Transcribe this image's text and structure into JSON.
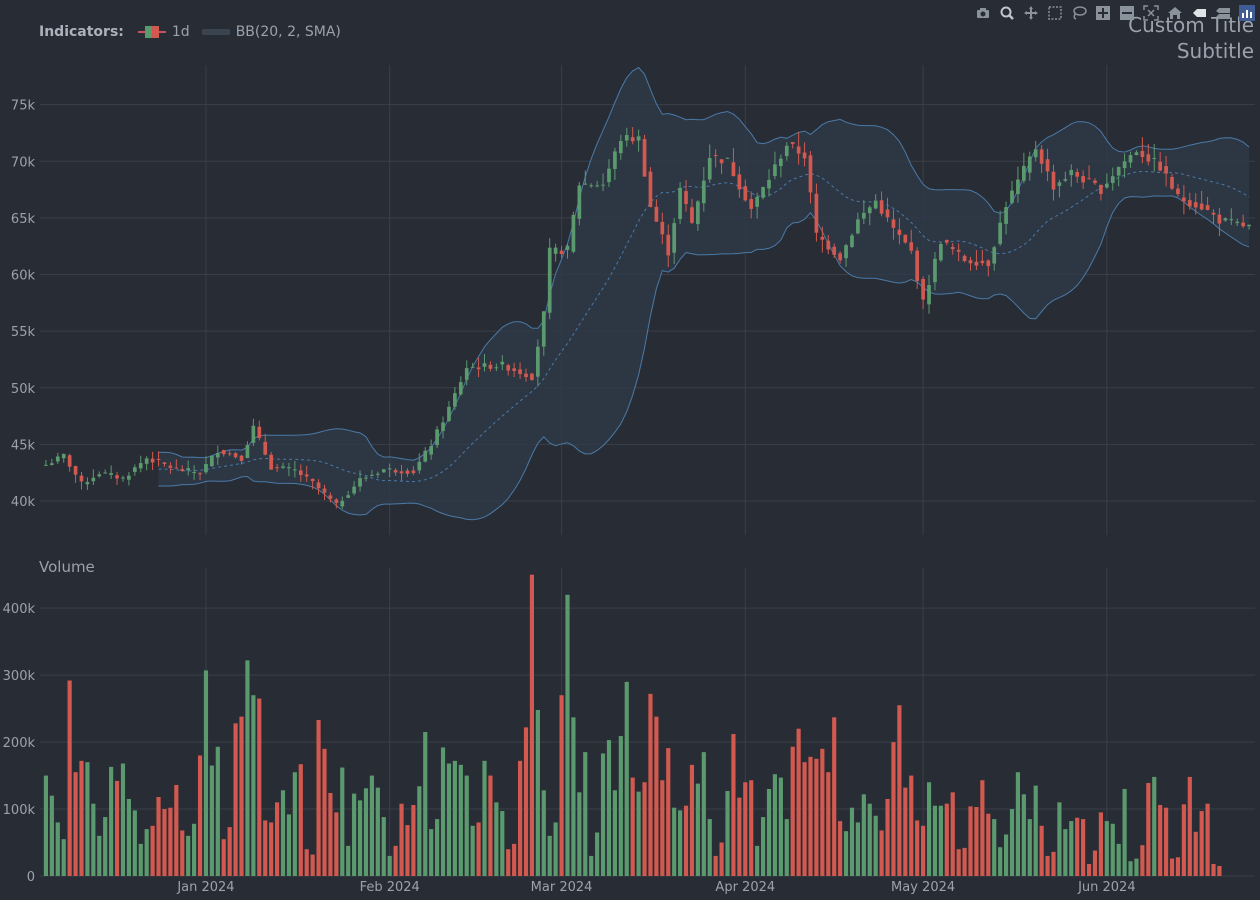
{
  "legend": {
    "label": "Indicators:",
    "items": [
      {
        "name": "1d",
        "kind": "candlestick"
      },
      {
        "name": "BB(20, 2, SMA)",
        "kind": "band"
      }
    ]
  },
  "titles": {
    "title": "Custom Title",
    "subtitle": "Subtitle"
  },
  "volume_title": "Volume",
  "modebar": [
    "camera-icon",
    "zoom-icon",
    "pan-icon",
    "box-select-icon",
    "lasso-icon",
    "zoom-in-icon",
    "zoom-out-icon",
    "autoscale-icon",
    "home-icon",
    "spike-lines-icon",
    "hover-compare-icon",
    "plotly-logo-icon"
  ],
  "colors": {
    "up": "#5b9a6e",
    "down": "#d2594f",
    "band_line": "#4a7aa8",
    "band_fill": "#2f3a48",
    "grid": "#3a3f48",
    "background": "#282c34"
  },
  "chart_data": [
    {
      "type": "candlestick",
      "series_name": "1d",
      "x_range": [
        "2023-12-04",
        "2024-06-26"
      ],
      "y_range": [
        37000,
        78500
      ],
      "y_ticks": [
        {
          "value": 40000,
          "label": "40k"
        },
        {
          "value": 45000,
          "label": "45k"
        },
        {
          "value": 50000,
          "label": "50k"
        },
        {
          "value": 55000,
          "label": "55k"
        },
        {
          "value": 60000,
          "label": "60k"
        },
        {
          "value": 65000,
          "label": "65k"
        },
        {
          "value": 70000,
          "label": "70k"
        },
        {
          "value": 75000,
          "label": "75k"
        }
      ],
      "x_ticks": [
        {
          "date": "2024-01-01",
          "label": "Jan 2024"
        },
        {
          "date": "2024-02-01",
          "label": "Feb 2024"
        },
        {
          "date": "2024-03-01",
          "label": "Mar 2024"
        },
        {
          "date": "2024-04-01",
          "label": "Apr 2024"
        },
        {
          "date": "2024-05-01",
          "label": "May 2024"
        },
        {
          "date": "2024-06-01",
          "label": "Jun 2024"
        }
      ],
      "grid": true,
      "close_anchors": [
        [
          "2023-12-05",
          43200
        ],
        [
          "2023-12-08",
          44000
        ],
        [
          "2023-12-11",
          41500
        ],
        [
          "2023-12-14",
          42500
        ],
        [
          "2023-12-18",
          42000
        ],
        [
          "2023-12-22",
          43800
        ],
        [
          "2023-12-27",
          42800
        ],
        [
          "2023-12-31",
          42500
        ],
        [
          "2024-01-03",
          44500
        ],
        [
          "2024-01-07",
          43800
        ],
        [
          "2024-01-09",
          46500
        ],
        [
          "2024-01-12",
          43000
        ],
        [
          "2024-01-16",
          42700
        ],
        [
          "2024-01-19",
          41600
        ],
        [
          "2024-01-23",
          39600
        ],
        [
          "2024-01-27",
          41900
        ],
        [
          "2024-01-31",
          42800
        ],
        [
          "2024-02-05",
          42600
        ],
        [
          "2024-02-08",
          45000
        ],
        [
          "2024-02-11",
          48200
        ],
        [
          "2024-02-14",
          51800
        ],
        [
          "2024-02-20",
          52000
        ],
        [
          "2024-02-25",
          51000
        ],
        [
          "2024-02-27",
          56500
        ],
        [
          "2024-02-28",
          62000
        ],
        [
          "2024-03-02",
          62200
        ],
        [
          "2024-03-04",
          68000
        ],
        [
          "2024-03-08",
          68000
        ],
        [
          "2024-03-11",
          72000
        ],
        [
          "2024-03-14",
          72000
        ],
        [
          "2024-03-16",
          66000
        ],
        [
          "2024-03-19",
          62000
        ],
        [
          "2024-03-21",
          67500
        ],
        [
          "2024-03-23",
          64500
        ],
        [
          "2024-03-26",
          70500
        ],
        [
          "2024-03-29",
          70000
        ],
        [
          "2024-04-02",
          65800
        ],
        [
          "2024-04-05",
          68500
        ],
        [
          "2024-04-08",
          71500
        ],
        [
          "2024-04-11",
          70500
        ],
        [
          "2024-04-13",
          63500
        ],
        [
          "2024-04-17",
          61500
        ],
        [
          "2024-04-20",
          64800
        ],
        [
          "2024-04-23",
          66500
        ],
        [
          "2024-04-26",
          64000
        ],
        [
          "2024-04-29",
          62000
        ],
        [
          "2024-05-01",
          57500
        ],
        [
          "2024-05-04",
          63000
        ],
        [
          "2024-05-08",
          61300
        ],
        [
          "2024-05-12",
          61000
        ],
        [
          "2024-05-15",
          66200
        ],
        [
          "2024-05-20",
          71200
        ],
        [
          "2024-05-23",
          67800
        ],
        [
          "2024-05-26",
          69000
        ],
        [
          "2024-05-31",
          67500
        ],
        [
          "2024-06-03",
          69500
        ],
        [
          "2024-06-06",
          71000
        ],
        [
          "2024-06-10",
          69500
        ],
        [
          "2024-06-13",
          66800
        ],
        [
          "2024-06-17",
          66000
        ],
        [
          "2024-06-20",
          64800
        ],
        [
          "2024-06-25",
          64200
        ]
      ],
      "bollinger": {
        "period": 20,
        "std_dev": 2,
        "ma": "SMA"
      }
    },
    {
      "type": "bar",
      "title": "Volume",
      "y_range": [
        0,
        460000
      ],
      "y_ticks": [
        {
          "value": 0,
          "label": "0"
        },
        {
          "value": 100000,
          "label": "100k"
        },
        {
          "value": 200000,
          "label": "200k"
        },
        {
          "value": 300000,
          "label": "300k"
        },
        {
          "value": 400000,
          "label": "400k"
        }
      ],
      "x_ticks": [
        {
          "date": "2024-01-01",
          "label": "Jan 2024"
        },
        {
          "date": "2024-02-01",
          "label": "Feb 2024"
        },
        {
          "date": "2024-03-01",
          "label": "Mar 2024"
        },
        {
          "date": "2024-04-01",
          "label": "Apr 2024"
        },
        {
          "date": "2024-05-01",
          "label": "May 2024"
        },
        {
          "date": "2024-06-01",
          "label": "Jun 2024"
        }
      ],
      "values": [
        150000,
        120000,
        80000,
        55000,
        292000,
        155000,
        172000,
        170000,
        108000,
        60000,
        88000,
        163000,
        142000,
        168000,
        115000,
        98000,
        48000,
        70000,
        75000,
        118000,
        100000,
        102000,
        136000,
        68000,
        60000,
        78000,
        180000,
        307000,
        165000,
        193000,
        55000,
        73000,
        228000,
        238000,
        322000,
        270000,
        265000,
        83000,
        80000,
        110000,
        128000,
        92000,
        155000,
        167000,
        40000,
        32000,
        233000,
        190000,
        124000,
        95000,
        162000,
        45000,
        123000,
        113000,
        131000,
        150000,
        132000,
        88000,
        30000,
        45000,
        108000,
        76000,
        106000,
        134000,
        215000,
        70000,
        85000,
        192000,
        168000,
        172000,
        166000,
        150000,
        75000,
        80000,
        172000,
        150000,
        110000,
        97000,
        40000,
        48000,
        172000,
        222000,
        450000,
        248000,
        128000,
        60000,
        80000,
        270000,
        420000,
        237000,
        125000,
        185000,
        30000,
        65000,
        183000,
        203000,
        128000,
        209000,
        290000,
        147000,
        126000,
        140000,
        272000,
        238000,
        143000,
        191000,
        102000,
        98000,
        105000,
        166000,
        138000,
        185000,
        85000,
        30000,
        50000,
        127000,
        212000,
        117000,
        140000,
        143000,
        45000,
        88000,
        130000,
        152000,
        147000,
        85000,
        193000,
        220000,
        170000,
        178000,
        175000,
        190000,
        155000,
        237000,
        82000,
        67000,
        102000,
        80000,
        122000,
        108000,
        90000,
        68000,
        115000,
        200000,
        255000,
        132000,
        150000,
        83000,
        75000,
        140000,
        105000,
        105000,
        108000,
        125000,
        40000,
        42000,
        104000,
        103000,
        143000,
        93000,
        85000,
        43000,
        62000,
        100000,
        155000,
        122000,
        85000,
        135000,
        75000,
        30000,
        36000,
        110000,
        70000,
        82000,
        87000,
        85000,
        18000,
        38000,
        95000,
        82000,
        78000,
        48000,
        130000,
        22000,
        26000,
        46000,
        139000,
        148000,
        106000,
        102000,
        26000,
        28000,
        107000,
        148000,
        66000,
        97000,
        108000,
        18000,
        15000
      ],
      "directions_from_candles": true
    }
  ]
}
